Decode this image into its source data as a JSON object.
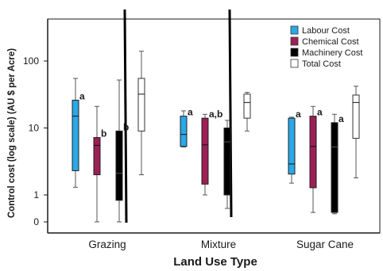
{
  "chart_data": {
    "type": "box",
    "title": "",
    "xlabel": "Land Use Type",
    "ylabel": "Control cost  (log scale) (AU $ per Acre)",
    "y_scale": "log",
    "y_ticks": [
      {
        "value": 0,
        "label": "0"
      },
      {
        "value": 1,
        "label": "1"
      },
      {
        "value": 10,
        "label": "10"
      },
      {
        "value": 100,
        "label": "100"
      }
    ],
    "categories": [
      "Grazing",
      "Mixture",
      "Sugar Cane"
    ],
    "legend_position": "top-right",
    "grid": false,
    "series": [
      {
        "name": "Labour Cost",
        "color": "#2aa8e8",
        "boxes": [
          {
            "min": 1.3,
            "q1": 2.3,
            "median": 15,
            "q3": 26,
            "max": 55,
            "label": "a"
          },
          {
            "min": 5.2,
            "q1": 5.3,
            "median": 8,
            "q3": 15,
            "max": 18,
            "label": "a"
          },
          {
            "min": 1.5,
            "q1": 2.05,
            "median": 2.9,
            "q3": 14,
            "max": 14.5,
            "label": "a"
          }
        ]
      },
      {
        "name": "Chemical Cost",
        "color": "#9c1f55",
        "boxes": [
          {
            "min": 0,
            "q1": 2.0,
            "median": 5.5,
            "q3": 7.2,
            "max": 21,
            "label": "b"
          },
          {
            "min": 1.0,
            "q1": 1.45,
            "median": 5.6,
            "q3": 14,
            "max": 16,
            "label": "a,b"
          },
          {
            "min": 0.35,
            "q1": 1.28,
            "median": 5.3,
            "q3": 15,
            "max": 21,
            "label": "a"
          }
        ]
      },
      {
        "name": "Machinery Cost",
        "color": "#000000",
        "boxes": [
          {
            "min": 0,
            "q1": 0.8,
            "median": 2.1,
            "q3": 9,
            "max": 52,
            "label": "b"
          },
          {
            "min": 0.5,
            "q1": 1.0,
            "median": 6.2,
            "q3": 10,
            "max": 13,
            "label": ""
          },
          {
            "min": 0.3,
            "q1": 0.35,
            "median": 5.2,
            "q3": 12,
            "max": 16,
            "label": "a"
          }
        ]
      },
      {
        "name": "Total Cost",
        "color": "#ffffff",
        "boxes": [
          {
            "min": 2.0,
            "q1": 9,
            "median": 32,
            "q3": 55,
            "max": 140,
            "label": ""
          },
          {
            "min": 9,
            "q1": 14,
            "median": 24,
            "q3": 32,
            "max": 34,
            "label": ""
          },
          {
            "min": 1.8,
            "q1": 7,
            "median": 24,
            "q3": 31,
            "max": 42,
            "label": ""
          }
        ]
      }
    ]
  }
}
